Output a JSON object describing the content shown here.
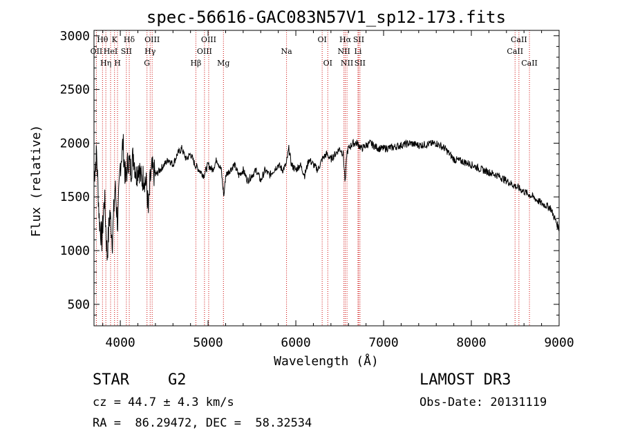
{
  "chart_data": {
    "type": "line",
    "title": "spec-56616-GAC083N57V1_sp12-173.fits",
    "xlabel": "Wavelength (Å)",
    "ylabel": "Flux (relative)",
    "xlim": [
      3700,
      9000
    ],
    "ylim": [
      300,
      3050
    ],
    "xticks": [
      4000,
      5000,
      6000,
      7000,
      8000,
      9000
    ],
    "yticks": [
      500,
      1000,
      1500,
      2000,
      2500,
      3000
    ],
    "series": [
      {
        "name": "spectrum",
        "x": [
          3700,
          3730,
          3760,
          3790,
          3820,
          3850,
          3880,
          3910,
          3940,
          3970,
          4000,
          4030,
          4060,
          4090,
          4120,
          4150,
          4180,
          4210,
          4240,
          4270,
          4300,
          4320,
          4340,
          4360,
          4400,
          4450,
          4500,
          4550,
          4600,
          4650,
          4700,
          4750,
          4800,
          4850,
          4900,
          4950,
          5000,
          5050,
          5100,
          5150,
          5180,
          5200,
          5250,
          5300,
          5350,
          5400,
          5450,
          5500,
          5550,
          5600,
          5650,
          5700,
          5750,
          5800,
          5850,
          5890,
          5920,
          5950,
          6000,
          6050,
          6100,
          6150,
          6200,
          6250,
          6300,
          6350,
          6400,
          6450,
          6500,
          6540,
          6563,
          6580,
          6600,
          6650,
          6700,
          6750,
          6800,
          6850,
          6900,
          6950,
          7000,
          7100,
          7200,
          7300,
          7400,
          7500,
          7600,
          7700,
          7800,
          7900,
          8000,
          8100,
          8200,
          8300,
          8400,
          8500,
          8600,
          8700,
          8800,
          8900,
          8950,
          9000
        ],
        "values": [
          1700,
          1900,
          1300,
          1100,
          1500,
          950,
          1350,
          1100,
          1600,
          1250,
          1800,
          2000,
          1650,
          1850,
          1750,
          1900,
          1700,
          1800,
          1650,
          1700,
          1600,
          1350,
          1650,
          1750,
          1700,
          1750,
          1800,
          1850,
          1800,
          1900,
          1950,
          1850,
          1900,
          1800,
          1750,
          1700,
          1800,
          1750,
          1850,
          1750,
          1500,
          1700,
          1750,
          1800,
          1700,
          1750,
          1650,
          1700,
          1750,
          1650,
          1750,
          1700,
          1750,
          1800,
          1750,
          1800,
          1950,
          1800,
          1750,
          1800,
          1700,
          1850,
          1800,
          1750,
          1850,
          1900,
          1850,
          1900,
          1950,
          1900,
          1620,
          1900,
          1950,
          2000,
          2000,
          1950,
          1980,
          2000,
          1970,
          1950,
          1950,
          1960,
          1980,
          2000,
          1980,
          1990,
          2000,
          1950,
          1850,
          1830,
          1800,
          1760,
          1730,
          1700,
          1650,
          1600,
          1550,
          1500,
          1440,
          1400,
          1300,
          1200
        ]
      }
    ],
    "lines": [
      {
        "label": "OII",
        "x": 3727,
        "row": 2
      },
      {
        "label": "Hθ",
        "x": 3797,
        "row": 1
      },
      {
        "label": "Hη",
        "x": 3835,
        "row": 3
      },
      {
        "label": "HeI",
        "x": 3889,
        "row": 2
      },
      {
        "label": "K",
        "x": 3934,
        "row": 1
      },
      {
        "label": "SII",
        "x": 4069,
        "row": 2
      },
      {
        "label": "H",
        "x": 3968,
        "row": 3
      },
      {
        "label": "Hδ",
        "x": 4102,
        "row": 1
      },
      {
        "label": "G",
        "x": 4304,
        "row": 3
      },
      {
        "label": "Hγ",
        "x": 4340,
        "row": 2
      },
      {
        "label": "OIII",
        "x": 4363,
        "row": 1
      },
      {
        "label": "Hβ",
        "x": 4861,
        "row": 3
      },
      {
        "label": "OIII",
        "x": 4959,
        "row": 2
      },
      {
        "label": "OIII",
        "x": 5007,
        "row": 1
      },
      {
        "label": "Mg",
        "x": 5175,
        "row": 3
      },
      {
        "label": "Na",
        "x": 5894,
        "row": 2
      },
      {
        "label": "OI",
        "x": 6300,
        "row": 1
      },
      {
        "label": "OI",
        "x": 6364,
        "row": 3
      },
      {
        "label": "NII",
        "x": 6548,
        "row": 2
      },
      {
        "label": "Hα",
        "x": 6563,
        "row": 1
      },
      {
        "label": "NII",
        "x": 6583,
        "row": 3
      },
      {
        "label": "SII",
        "x": 6716,
        "row": 1
      },
      {
        "label": "Li",
        "x": 6708,
        "row": 2
      },
      {
        "label": "SII",
        "x": 6731,
        "row": 3
      },
      {
        "label": "CaII",
        "x": 8498,
        "row": 2
      },
      {
        "label": "CaII",
        "x": 8542,
        "row": 1
      },
      {
        "label": "CaII",
        "x": 8662,
        "row": 3
      }
    ]
  },
  "info": {
    "class": "STAR",
    "subclass": "G2",
    "survey": "LAMOST DR3",
    "cz": "cz = 44.7 ± 4.3 km/s",
    "obs_date": "Obs-Date: 20131119",
    "coords": "RA =  86.29472, DEC =  58.32534"
  }
}
